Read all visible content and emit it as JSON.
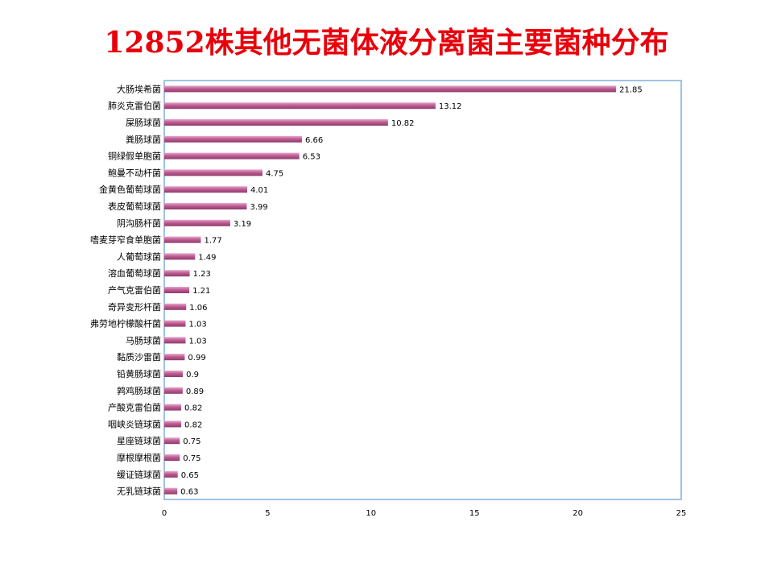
{
  "title": "12852株其他无菌体液分离菌主要菌种分布",
  "colors": {
    "title": "#e8000b",
    "bar": "#c05d94",
    "frame": "#9dc3e6"
  },
  "chart_data": {
    "type": "bar",
    "orientation": "horizontal",
    "categories": [
      "大肠埃希菌",
      "肺炎克雷伯菌",
      "屎肠球菌",
      "粪肠球菌",
      "铜绿假单胞菌",
      "鲍曼不动杆菌",
      "金黄色葡萄球菌",
      "表皮葡萄球菌",
      "阴沟肠杆菌",
      "嗜麦芽窄食单胞菌",
      "人葡萄球菌",
      "溶血葡萄球菌",
      "产气克雷伯菌",
      "奇异变形杆菌",
      "弗劳地柠檬酸杆菌",
      "马肠球菌",
      "黏质沙雷菌",
      "铅黄肠球菌",
      "鹑鸡肠球菌",
      "产酸克雷伯菌",
      "咽峡炎链球菌",
      "星座链球菌",
      "摩根摩根菌",
      "缓证链球菌",
      "无乳链球菌"
    ],
    "values": [
      21.85,
      13.12,
      10.82,
      6.66,
      6.53,
      4.75,
      4.01,
      3.99,
      3.19,
      1.77,
      1.49,
      1.23,
      1.21,
      1.06,
      1.03,
      1.03,
      0.99,
      0.9,
      0.89,
      0.82,
      0.82,
      0.75,
      0.75,
      0.65,
      0.63
    ],
    "labels": [
      "21.85",
      "13.12",
      "10.82",
      "6.66",
      "6.53",
      "4.75",
      "4.01",
      "3.99",
      "3.19",
      "1.77",
      "1.49",
      "1.23",
      "1.21",
      "1.06",
      "1.03",
      "1.03",
      "0.99",
      "0.9",
      "0.89",
      "0.82",
      "0.82",
      "0.75",
      "0.75",
      "0.65",
      "0.63"
    ],
    "xlim": [
      0,
      25
    ],
    "xticks": [
      "0",
      "5",
      "10",
      "15",
      "20",
      "25"
    ],
    "grid": false
  }
}
